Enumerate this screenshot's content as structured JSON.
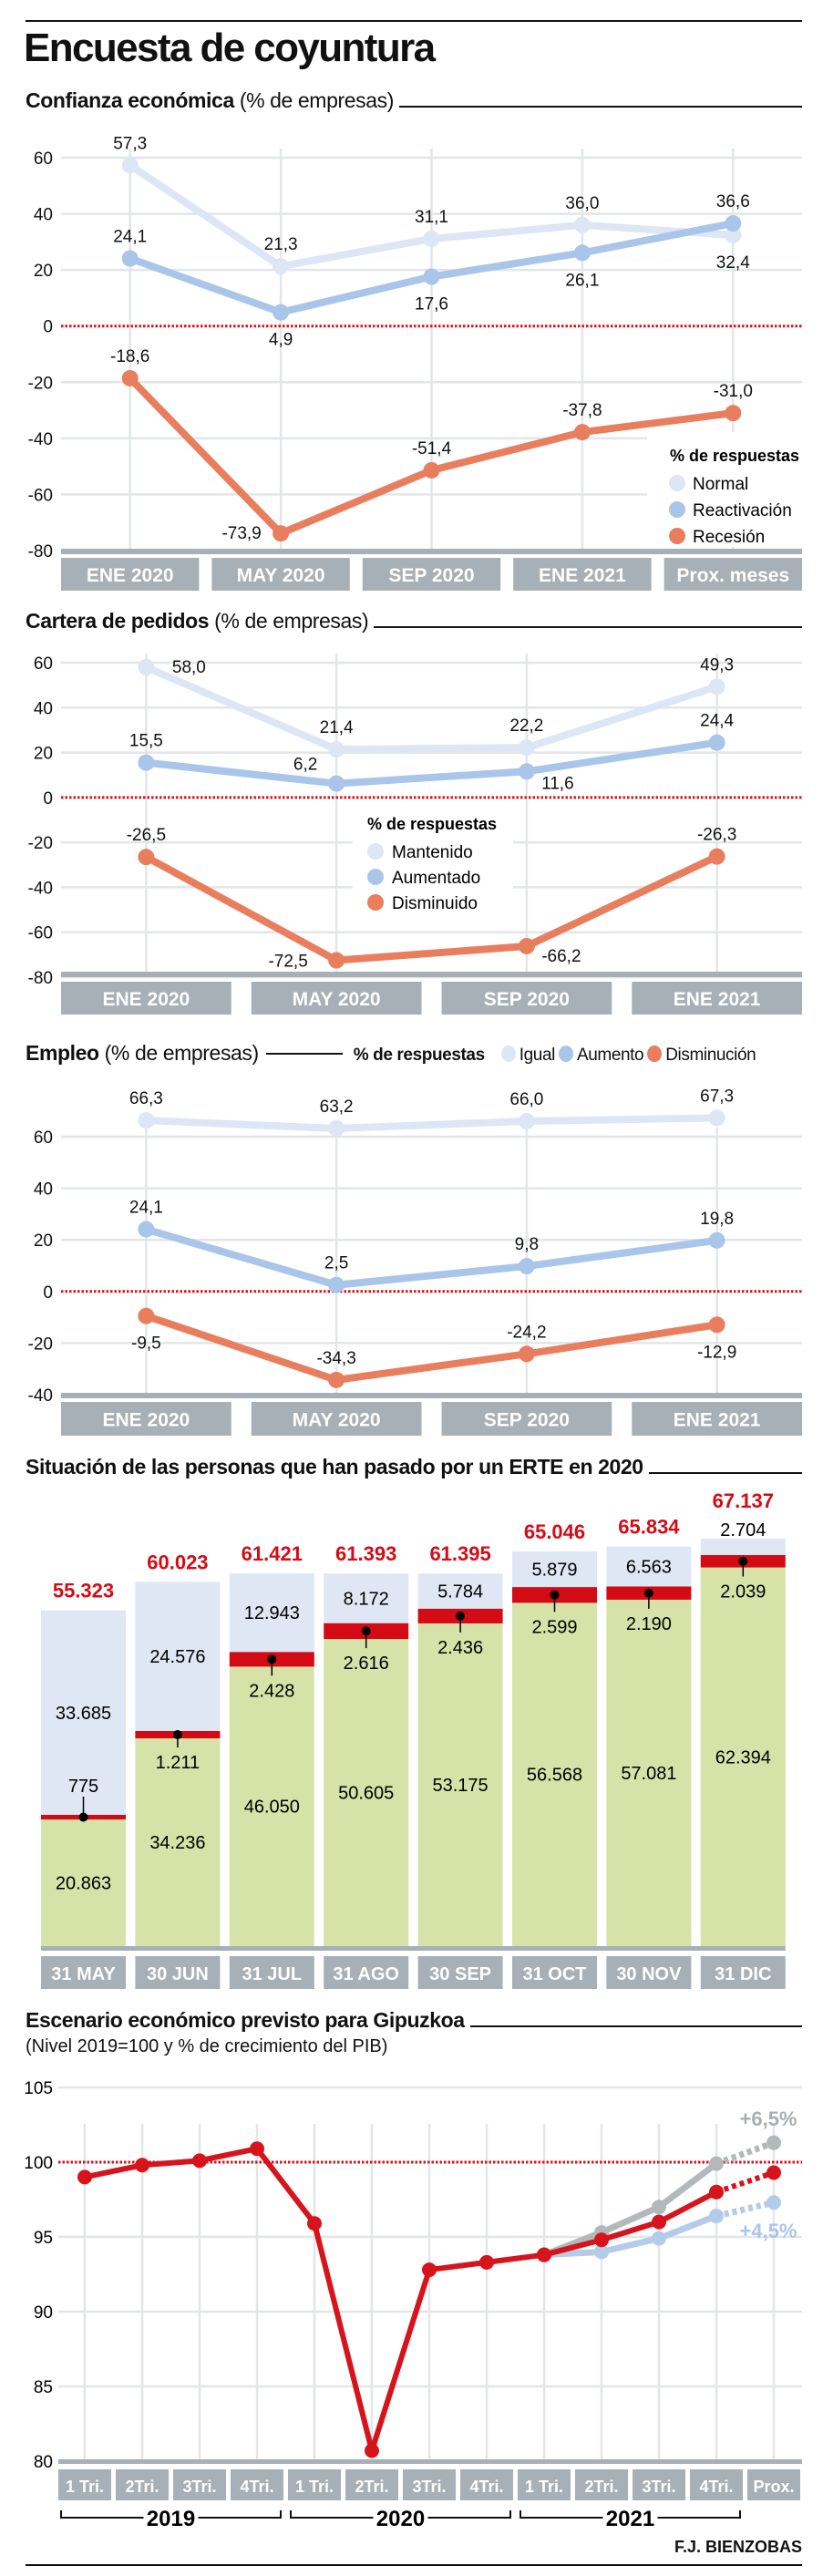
{
  "title": "Encuesta de coyuntura",
  "credit": "F.J. BIENZOBAS",
  "chart_data": [
    {
      "type": "line",
      "title": "Confianza económica",
      "subtitle": "(% de empresas)",
      "legend_title": "% de respuestas",
      "legend_position": "bottom-right",
      "categories": [
        "ENE 2020",
        "MAY 2020",
        "SEP 2020",
        "ENE 2021",
        "Prox. meses"
      ],
      "ylim": [
        -80,
        60
      ],
      "yticks": [
        60,
        40,
        20,
        0,
        -20,
        -40,
        -60,
        -80
      ],
      "reference_line": 0,
      "grid": true,
      "series": [
        {
          "name": "Normal",
          "color": "#dde6f5",
          "values": [
            57.3,
            21.3,
            31.1,
            36.0,
            32.4
          ]
        },
        {
          "name": "Reactivación",
          "color": "#a9c5ea",
          "values": [
            24.1,
            4.9,
            17.6,
            26.1,
            36.6
          ]
        },
        {
          "name": "Recesión",
          "color": "#e97e5f",
          "values": [
            -18.6,
            -73.9,
            -51.4,
            -37.8,
            -31.0
          ]
        }
      ]
    },
    {
      "type": "line",
      "title": "Cartera de pedidos",
      "subtitle": "(% de empresas)",
      "legend_title": "% de respuestas",
      "legend_position": "center",
      "categories": [
        "ENE 2020",
        "MAY 2020",
        "SEP 2020",
        "ENE 2021"
      ],
      "ylim": [
        -80,
        60
      ],
      "yticks": [
        60,
        40,
        20,
        0,
        -20,
        -40,
        -60,
        -80
      ],
      "reference_line": 0,
      "grid": true,
      "series": [
        {
          "name": "Mantenido",
          "color": "#dde6f5",
          "values": [
            58.0,
            21.4,
            22.2,
            49.3
          ]
        },
        {
          "name": "Aumentado",
          "color": "#a9c5ea",
          "values": [
            15.5,
            6.2,
            11.6,
            24.4
          ]
        },
        {
          "name": "Disminuido",
          "color": "#e97e5f",
          "values": [
            -26.5,
            -72.5,
            -66.2,
            -26.3
          ]
        }
      ]
    },
    {
      "type": "line",
      "title": "Empleo",
      "subtitle": "(% de empresas)",
      "legend_title": "% de respuestas",
      "legend_position": "top",
      "categories": [
        "ENE 2020",
        "MAY 2020",
        "SEP 2020",
        "ENE 2021"
      ],
      "ylim": [
        -40,
        60
      ],
      "yticks": [
        60,
        40,
        20,
        0,
        -20,
        -40
      ],
      "reference_line": 0,
      "grid": true,
      "series": [
        {
          "name": "Igual",
          "color": "#dde6f5",
          "values": [
            66.3,
            63.2,
            66.0,
            67.3
          ]
        },
        {
          "name": "Aumento",
          "color": "#a9c5ea",
          "values": [
            24.1,
            2.5,
            9.8,
            19.8
          ]
        },
        {
          "name": "Disminución",
          "color": "#e97e5f",
          "values": [
            -9.5,
            -34.3,
            -24.2,
            -12.9
          ]
        }
      ]
    },
    {
      "type": "bar",
      "stacked": true,
      "title": "Situación de las personas que han pasado por un ERTE en 2020",
      "categories": [
        "31 MAY",
        "30 JUN",
        "31 JUL",
        "31 AGO",
        "30 SEP",
        "31 OCT",
        "30 NOV",
        "31 DIC"
      ],
      "totals": [
        55323,
        60023,
        61421,
        61393,
        61395,
        65046,
        65834,
        67137
      ],
      "total_color": "#d40b15",
      "series": [
        {
          "color": "#d6e2a8",
          "values": [
            20863,
            34236,
            46050,
            50605,
            53175,
            56568,
            57081,
            62394
          ]
        },
        {
          "color": "#d40b15",
          "values": [
            775,
            1211,
            2428,
            2616,
            2436,
            2599,
            2190,
            2039
          ]
        },
        {
          "color": "#dfe7f5",
          "values": [
            33685,
            24576,
            12943,
            8172,
            5784,
            5879,
            6563,
            2704
          ]
        }
      ]
    },
    {
      "type": "line",
      "title": "Escenario económico previsto para Gipuzkoa",
      "subtitle": "(Nivel 2019=100 y % de crecimiento del PIB)",
      "categories": [
        "1 Tri.",
        "2Tri.",
        "3Tri.",
        "4Tri.",
        "1 Tri.",
        "2Tri.",
        "3Tri.",
        "4Tri.",
        "1 Tri.",
        "2Tri.",
        "3Tri.",
        "4Tri.",
        "Prox."
      ],
      "year_groups": [
        {
          "label": "2019",
          "span": [
            0,
            3
          ]
        },
        {
          "label": "2020",
          "span": [
            4,
            7
          ]
        },
        {
          "label": "2021",
          "span": [
            8,
            11
          ]
        }
      ],
      "ylim": [
        80,
        105
      ],
      "yticks": [
        105,
        100,
        95,
        90,
        85,
        80
      ],
      "reference_line": 100,
      "grid": true,
      "forecast_from_index": 11,
      "series": [
        {
          "color": "#b3b8bb",
          "values": [
            null,
            null,
            null,
            null,
            null,
            null,
            null,
            null,
            93.8,
            95.3,
            97.0,
            99.9,
            101.3
          ],
          "annotation": "+6,5%",
          "annotation_color": "#a8aeb2"
        },
        {
          "color": "#b4cbe9",
          "values": [
            null,
            null,
            null,
            null,
            null,
            null,
            null,
            null,
            93.8,
            94.0,
            94.9,
            96.4,
            97.3
          ],
          "annotation": "+4,5%",
          "annotation_color": "#a9c5ea"
        },
        {
          "color": "#d7131b",
          "values": [
            99.0,
            99.8,
            100.1,
            100.9,
            95.9,
            80.7,
            92.8,
            93.3,
            93.8,
            94.8,
            96.0,
            98.0,
            99.3
          ]
        }
      ]
    }
  ]
}
